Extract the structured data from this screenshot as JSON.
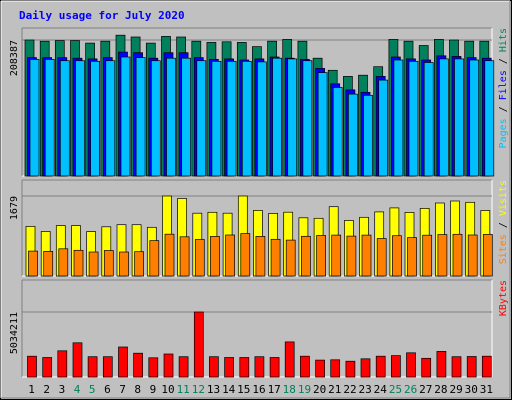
{
  "chart_data": {
    "type": "bar",
    "title": "Daily usage for July 2020",
    "categories": [
      "1",
      "2",
      "3",
      "4",
      "5",
      "6",
      "7",
      "8",
      "9",
      "10",
      "11",
      "12",
      "13",
      "14",
      "15",
      "16",
      "17",
      "18",
      "19",
      "20",
      "21",
      "22",
      "23",
      "24",
      "25",
      "26",
      "27",
      "28",
      "29",
      "30",
      "31"
    ],
    "weekend_days": [
      "4",
      "5",
      "11",
      "12",
      "18",
      "19",
      "25",
      "26"
    ],
    "panels": [
      {
        "id": "hits-files-pages",
        "ymax": 208387,
        "ymax_label": "208387",
        "legend": [
          "Pages",
          "Files",
          "Hits"
        ],
        "series": [
          {
            "name": "Hits",
            "color": "#00805c",
            "values": [
              208387,
              206500,
              207400,
              207400,
              203700,
              206500,
              215800,
              213000,
              203700,
              213900,
              213000,
              206500,
              204700,
              205600,
              204700,
              198200,
              206500,
              209300,
              206500,
              180500,
              161900,
              152600,
              154500,
              167400,
              209300,
              206500,
              200000,
              209300,
              208400,
              206500,
              206500
            ]
          },
          {
            "name": "Files",
            "color": "#0000ff",
            "values": [
              181400,
              181400,
              181400,
              180500,
              179500,
              181400,
              189800,
              188900,
              180500,
              188900,
              188900,
              181400,
              178600,
              179500,
              177700,
              179500,
              182400,
              180500,
              178600,
              164900,
              141200,
              132000,
              128200,
              152600,
              182400,
              179500,
              177700,
              184200,
              183300,
              181400,
              180500
            ]
          },
          {
            "name": "Pages",
            "color": "#00c0ff",
            "values": [
              178600,
              178600,
              176700,
              176700,
              175800,
              176700,
              182400,
              181400,
              176700,
              180500,
              180500,
              176700,
              175800,
              175800,
              175800,
              174900,
              180500,
              179500,
              176700,
              158500,
              135700,
              125500,
              123600,
              147000,
              177700,
              175800,
              173900,
              179500,
              179500,
              177700,
              176700
            ]
          }
        ]
      },
      {
        "id": "visits-sites",
        "ymax": 1679,
        "ymax_label": "1679",
        "legend": [
          "Sites",
          "Visits"
        ],
        "series": [
          {
            "name": "Visits",
            "color": "#ffff00",
            "values": [
              1040,
              933,
              1058,
              1058,
              932,
              1032,
              1076,
              1076,
              1022,
              1679,
              1627,
              1317,
              1336,
              1317,
              1679,
              1377,
              1313,
              1338,
              1221,
              1212,
              1454,
              1164,
              1233,
              1346,
              1429,
              1335,
              1418,
              1533,
              1574,
              1547,
              1375
            ]
          },
          {
            "name": "Sites",
            "color": "#ff8000",
            "values": [
              523,
              516,
              570,
              539,
              503,
              535,
              503,
              509,
              744,
              877,
              823,
              767,
              832,
              861,
              890,
              832,
              770,
              754,
              833,
              851,
              859,
              838,
              859,
              787,
              845,
              805,
              856,
              869,
              875,
              861,
              873
            ]
          }
        ]
      },
      {
        "id": "kbytes",
        "ymax": 5034211,
        "ymax_label": "5034211",
        "legend": [
          "KBytes"
        ],
        "series": [
          {
            "name": "KBytes",
            "color": "#ff0000",
            "values": [
              1612000,
              1508000,
              2030000,
              2646000,
              1570000,
              1570000,
              2322000,
              1840000,
              1486000,
              1785000,
              1570000,
              5034211,
              1570000,
              1508000,
              1508000,
              1570000,
              1508000,
              2720000,
              1612000,
              1310000,
              1334000,
              1225000,
              1408000,
              1612000,
              1654000,
              1876000,
              1447000,
              1980000,
              1570000,
              1590000,
              1612000
            ]
          }
        ]
      }
    ]
  }
}
